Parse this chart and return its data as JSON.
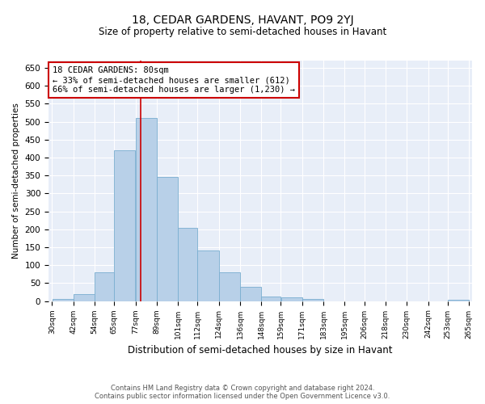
{
  "title": "18, CEDAR GARDENS, HAVANT, PO9 2YJ",
  "subtitle": "Size of property relative to semi-detached houses in Havant",
  "xlabel": "Distribution of semi-detached houses by size in Havant",
  "ylabel": "Number of semi-detached properties",
  "footer_line1": "Contains HM Land Registry data © Crown copyright and database right 2024.",
  "footer_line2": "Contains public sector information licensed under the Open Government Licence v3.0.",
  "annotation_title": "18 CEDAR GARDENS: 80sqm",
  "annotation_line1": "← 33% of semi-detached houses are smaller (612)",
  "annotation_line2": "66% of semi-detached houses are larger (1,230) →",
  "bar_heights": [
    5,
    20,
    80,
    420,
    510,
    345,
    205,
    140,
    80,
    40,
    13,
    10,
    5,
    0,
    0,
    0,
    0,
    0,
    0,
    4
  ],
  "bar_left_edges": [
    30,
    42,
    54,
    65,
    77,
    89,
    101,
    112,
    124,
    136,
    148,
    159,
    171,
    183,
    195,
    206,
    218,
    230,
    242,
    253
  ],
  "bar_widths": [
    12,
    12,
    11,
    12,
    12,
    12,
    11,
    12,
    12,
    12,
    11,
    12,
    12,
    12,
    11,
    12,
    12,
    12,
    11,
    12
  ],
  "tick_labels": [
    "30sqm",
    "42sqm",
    "54sqm",
    "65sqm",
    "77sqm",
    "89sqm",
    "101sqm",
    "112sqm",
    "124sqm",
    "136sqm",
    "148sqm",
    "159sqm",
    "171sqm",
    "183sqm",
    "195sqm",
    "206sqm",
    "218sqm",
    "230sqm",
    "242sqm",
    "253sqm",
    "265sqm"
  ],
  "yticks": [
    0,
    50,
    100,
    150,
    200,
    250,
    300,
    350,
    400,
    450,
    500,
    550,
    600,
    650
  ],
  "ylim": [
    0,
    670
  ],
  "xlim": [
    28,
    267
  ],
  "bar_color": "#b8d0e8",
  "bar_edge_color": "#7aaed0",
  "vline_color": "#cc0000",
  "vline_x": 80,
  "background_color": "#e8eef8",
  "annotation_box_color": "#cc0000",
  "grid_color": "#ffffff",
  "title_fontsize": 10,
  "subtitle_fontsize": 8.5,
  "ylabel_fontsize": 7.5,
  "xlabel_fontsize": 8.5,
  "tick_fontsize": 6.5,
  "ytick_fontsize": 7.5,
  "annot_fontsize": 7.5,
  "footer_fontsize": 6.0
}
